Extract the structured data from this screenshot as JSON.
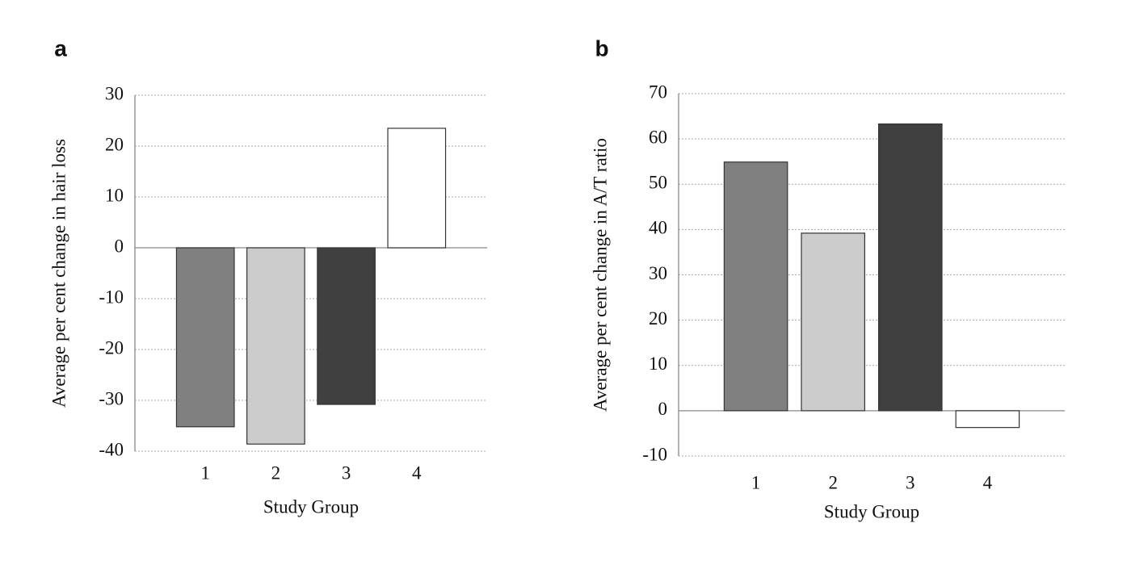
{
  "chart_data": [
    {
      "type": "bar",
      "label": "a",
      "y_label": "Average per cent change in hair loss",
      "x_label": "Study Group",
      "categories": [
        "1",
        "2",
        "3",
        "4"
      ],
      "values": [
        -35.2,
        -38.6,
        -30.8,
        23.5
      ],
      "colors": [
        "#808080",
        "#cccccc",
        "#404040",
        "#ffffff"
      ],
      "ylim": [
        -40,
        30
      ],
      "yticks": [
        -40,
        -30,
        -20,
        -10,
        0,
        10,
        20,
        30
      ],
      "grid": true
    },
    {
      "type": "bar",
      "label": "b",
      "y_label": "Average per cent change in A/T ratio",
      "x_label": "Study Group",
      "categories": [
        "1",
        "2",
        "3",
        "4"
      ],
      "values": [
        54.9,
        39.2,
        63.3,
        -3.7
      ],
      "colors": [
        "#808080",
        "#cccccc",
        "#404040",
        "#ffffff"
      ],
      "ylim": [
        -10,
        70
      ],
      "yticks": [
        -10,
        0,
        10,
        20,
        30,
        40,
        50,
        60,
        70
      ],
      "grid": true
    }
  ]
}
